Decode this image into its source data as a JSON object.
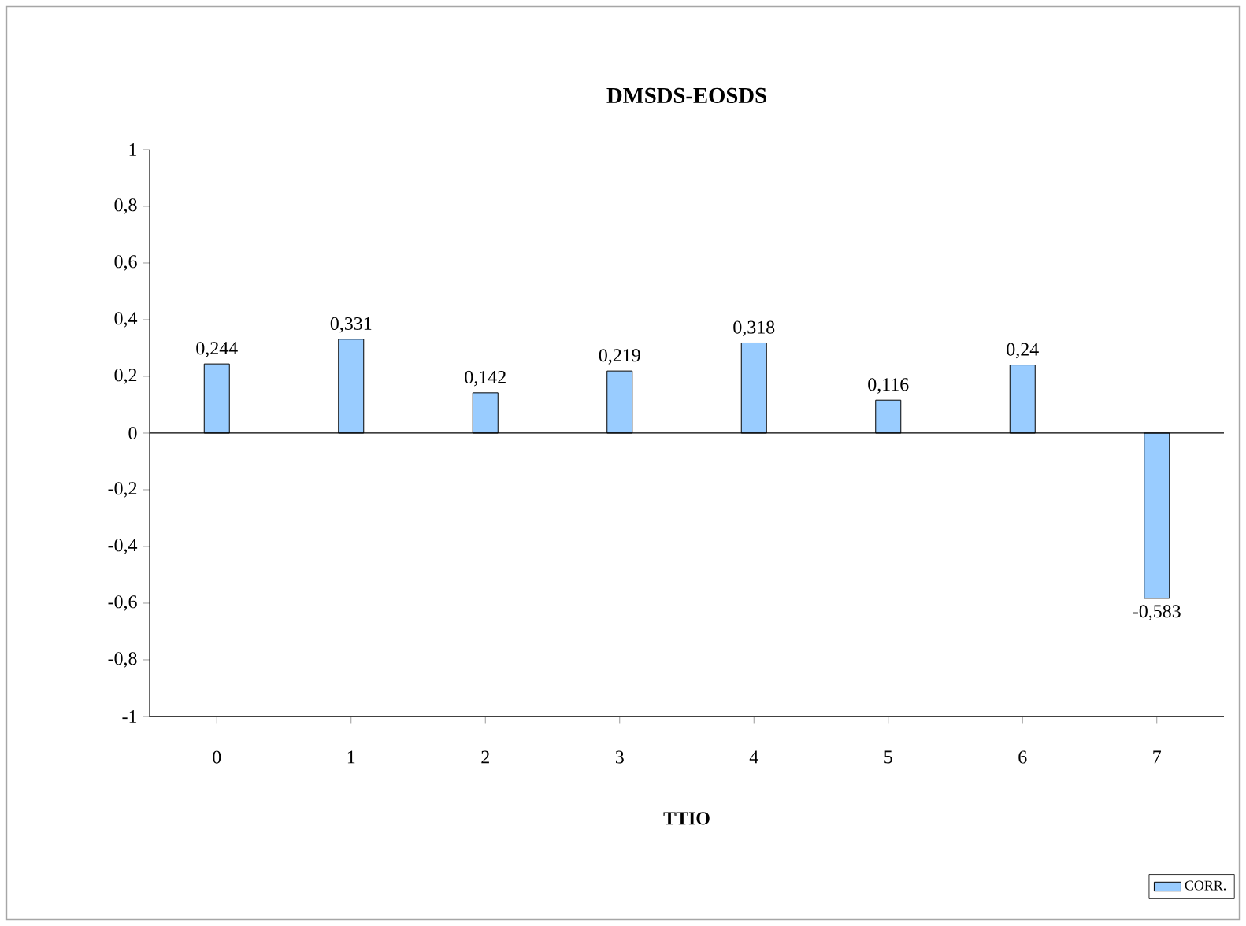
{
  "chart_data": {
    "type": "bar",
    "title": "DMSDS-EOSDS",
    "xlabel": "TTIO",
    "categories": [
      "0",
      "1",
      "2",
      "3",
      "4",
      "5",
      "6",
      "7"
    ],
    "series": [
      {
        "name": "CORR.",
        "color": "#99ccff",
        "values": [
          0.244,
          0.331,
          0.142,
          0.219,
          0.318,
          0.116,
          0.24,
          -0.583
        ],
        "value_labels": [
          "0,244",
          "0,331",
          "0,142",
          "0,219",
          "0,318",
          "0,116",
          "0,24",
          "-0,583"
        ]
      }
    ],
    "ylim": [
      -1,
      1
    ],
    "yticks": [
      {
        "value": -1,
        "label": "-1"
      },
      {
        "value": -0.8,
        "label": "-0,8"
      },
      {
        "value": -0.6,
        "label": "-0,6"
      },
      {
        "value": -0.4,
        "label": "-0,4"
      },
      {
        "value": -0.2,
        "label": "-0,2"
      },
      0,
      {
        "value": 0.2,
        "label": "0,2"
      },
      {
        "value": 0.4,
        "label": "0,4"
      },
      {
        "value": 0.6,
        "label": "0,6"
      },
      {
        "value": 0.8,
        "label": "0,8"
      },
      1
    ],
    "ref_lines": [
      {
        "axis": "y",
        "value": 0,
        "color": "#000000"
      }
    ],
    "grid": false,
    "legend": "bottom right"
  }
}
